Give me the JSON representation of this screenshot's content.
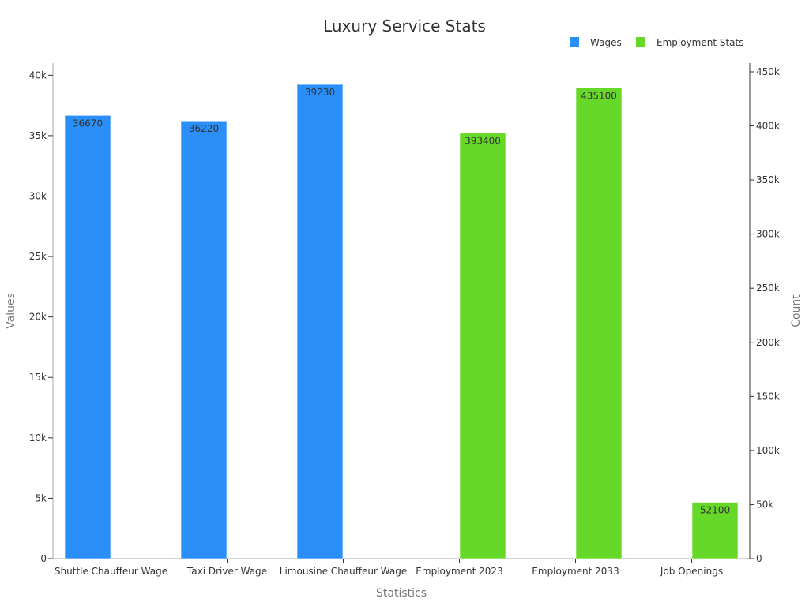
{
  "colors": {
    "wages": "#2b8ff9",
    "employment": "#66d928",
    "axis": "#aaaaaa",
    "text": "#333333",
    "axis_title": "#777777"
  },
  "chart_data": {
    "type": "bar",
    "title": "Luxury Service Stats",
    "categories": [
      "Shuttle Chauffeur Wage",
      "Taxi Driver Wage",
      "Limousine Chauffeur Wage",
      "Employment 2023",
      "Employment 2033",
      "Job Openings"
    ],
    "series": [
      {
        "name": "Wages",
        "axis": "left",
        "color": "#2b8ff9",
        "values": [
          36670,
          36220,
          39230,
          null,
          null,
          null
        ]
      },
      {
        "name": "Employment Stats",
        "axis": "right",
        "color": "#66d928",
        "values": [
          null,
          null,
          null,
          393400,
          435100,
          52100
        ]
      }
    ],
    "xlabel": "Statistics",
    "ylabel": "Values",
    "y2label": "Count",
    "ylim": [
      0,
      41000
    ],
    "y2lim": [
      0,
      458000
    ],
    "yticks": [
      0,
      5000,
      10000,
      15000,
      20000,
      25000,
      30000,
      35000,
      40000
    ],
    "ytick_labels": [
      "0",
      "5k",
      "10k",
      "15k",
      "20k",
      "25k",
      "30k",
      "35k",
      "40k"
    ],
    "y2ticks": [
      0,
      50000,
      100000,
      150000,
      200000,
      250000,
      300000,
      350000,
      400000,
      450000
    ],
    "y2tick_labels": [
      "0",
      "50k",
      "100k",
      "150k",
      "200k",
      "250k",
      "300k",
      "350k",
      "400k",
      "450k"
    ],
    "legend_position": "top-right",
    "grid": false
  }
}
